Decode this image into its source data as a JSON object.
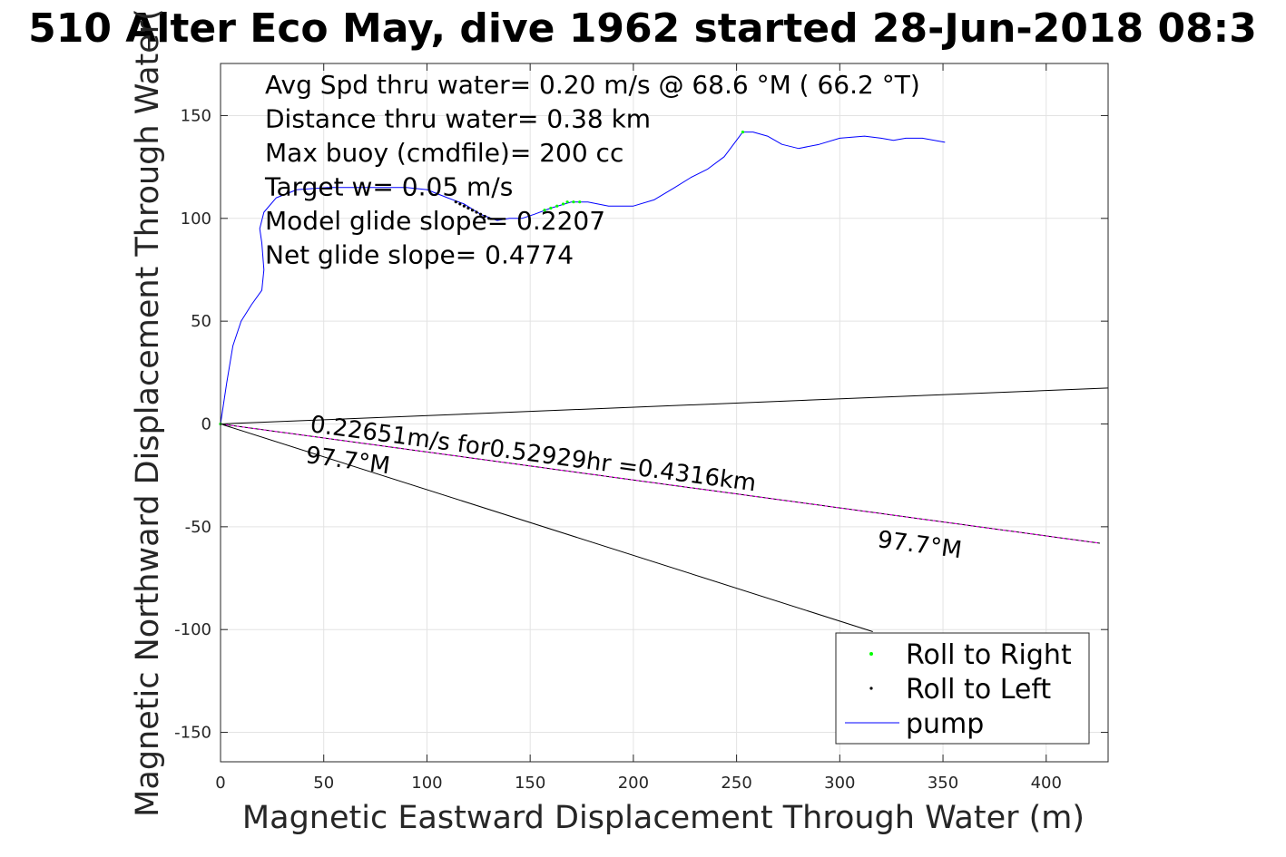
{
  "title": "510 Alter Eco May, dive 1962 started 28-Jun-2018 08:3",
  "chart_data": {
    "type": "line",
    "xlabel": "Magnetic Eastward Displacement Through Water (m)",
    "ylabel": "Magnetic Northward Displacement Through Water(",
    "xlim": [
      0,
      430
    ],
    "ylim": [
      -165,
      175
    ],
    "xticks": [
      0,
      50,
      100,
      150,
      200,
      250,
      300,
      350,
      400
    ],
    "yticks": [
      -150,
      -100,
      -50,
      0,
      50,
      100,
      150
    ],
    "grid": true,
    "legend_position": "bottom-right",
    "annotations": [
      "Avg Spd thru water=  0.20 m/s @  68.6 °M ( 66.2 °T)",
      "Distance thru water=  0.38 km",
      "Max buoy (cmdfile)= 200 cc",
      "Target w= 0.05 m/s",
      "Model glide slope= 0.2207",
      "Net glide slope= 0.4774"
    ],
    "current_label": "0.22651m/s for0.52929hr =0.4316km",
    "heading_labels": [
      "97.7°M",
      "97.7°M"
    ],
    "series": [
      {
        "name": "pump",
        "color": "#0000ff",
        "x": [
          0,
          3,
          6,
          10,
          15,
          20,
          21,
          20,
          19,
          21,
          27,
          37,
          52,
          72,
          90,
          100,
          110,
          118,
          126,
          134,
          140,
          146,
          152,
          160,
          170,
          178,
          188,
          200,
          210,
          220,
          228,
          236,
          244,
          250,
          253,
          258,
          265,
          272,
          280,
          290,
          300,
          312,
          320,
          326,
          332,
          340,
          351
        ],
        "y": [
          0,
          20,
          38,
          50,
          58,
          65,
          75,
          88,
          95,
          103,
          110,
          114,
          115,
          115,
          115,
          114,
          110,
          107,
          102,
          99,
          100,
          100,
          102,
          105,
          108,
          108,
          106,
          106,
          109,
          115,
          120,
          124,
          130,
          138,
          142,
          142,
          140,
          136,
          134,
          136,
          139,
          140,
          139,
          138,
          139,
          139,
          137
        ]
      },
      {
        "name": "Roll to Right",
        "color": "#00ff00",
        "x": [
          0,
          157,
          160,
          163,
          166,
          168,
          171,
          174,
          253
        ],
        "y": [
          0,
          104,
          105,
          106,
          107,
          108,
          108,
          108,
          142
        ]
      },
      {
        "name": "Roll to Left",
        "color": "#000000",
        "x": [
          114,
          116,
          118,
          120,
          122,
          124,
          126,
          128,
          130
        ],
        "y": [
          108,
          107,
          106,
          105,
          104,
          103,
          102,
          101,
          100
        ]
      }
    ],
    "reference_lines": [
      {
        "x": [
          0,
          430
        ],
        "y": [
          0,
          17.5
        ],
        "color": "#000000"
      },
      {
        "x": [
          0,
          316
        ],
        "y": [
          0,
          -101
        ],
        "color": "#000000"
      },
      {
        "x": [
          0,
          426
        ],
        "y": [
          0,
          -58
        ],
        "color": "#000000"
      },
      {
        "x": [
          0,
          426
        ],
        "y": [
          0,
          -58
        ],
        "color": "#ff00ff",
        "dashed": true
      }
    ]
  },
  "legend": [
    {
      "label": "Roll to Right",
      "kind": "dot",
      "color": "#00ff00"
    },
    {
      "label": "Roll to Left",
      "kind": "dot",
      "color": "#000000"
    },
    {
      "label": "pump",
      "kind": "line",
      "color": "#0000ff"
    }
  ]
}
